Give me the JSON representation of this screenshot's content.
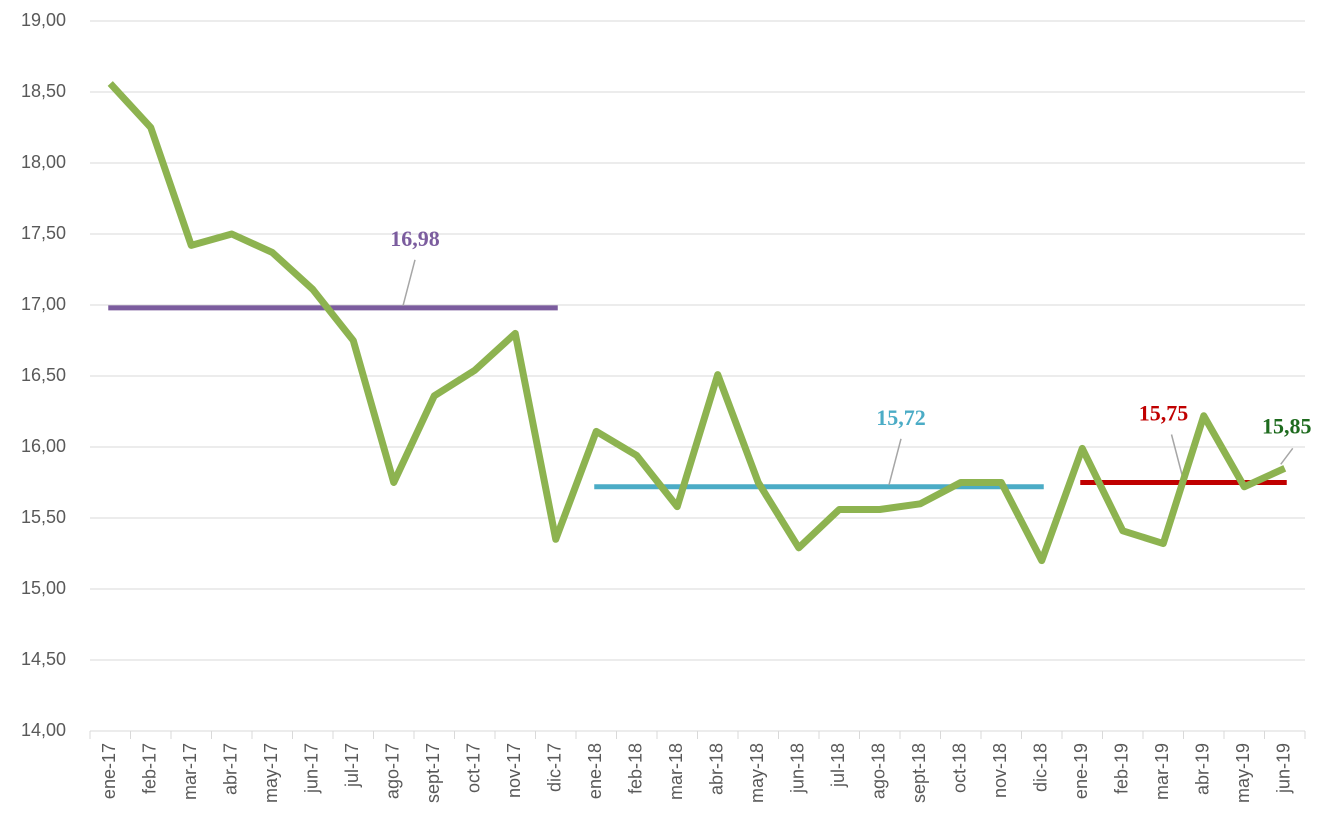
{
  "chart_data": {
    "type": "line",
    "categories": [
      "ene-17",
      "feb-17",
      "mar-17",
      "abr-17",
      "may-17",
      "jun-17",
      "jul-17",
      "ago-17",
      "sept-17",
      "oct-17",
      "nov-17",
      "dic-17",
      "ene-18",
      "feb-18",
      "mar-18",
      "abr-18",
      "may-18",
      "jun-18",
      "jul-18",
      "ago-18",
      "sept-18",
      "oct-18",
      "nov-18",
      "dic-18",
      "ene-19",
      "feb-19",
      "mar-19",
      "abr-19",
      "may-19",
      "jun-19"
    ],
    "series": [
      {
        "color": "#8db350",
        "values": [
          18.56,
          18.25,
          17.42,
          17.5,
          17.37,
          17.11,
          16.75,
          15.75,
          16.36,
          16.54,
          16.8,
          15.35,
          16.11,
          15.94,
          15.58,
          16.51,
          15.75,
          15.29,
          15.56,
          15.56,
          15.6,
          15.75,
          15.75,
          15.2,
          15.99,
          15.41,
          15.32,
          16.22,
          15.72,
          15.85
        ],
        "end_label": {
          "text": "15,85",
          "color": "#1e6b1e"
        }
      }
    ],
    "reference_lines": [
      {
        "value": 16.98,
        "label": "16,98",
        "color": "#7b5c9e",
        "from": "ene-17",
        "to": "dic-17"
      },
      {
        "value": 15.72,
        "label": "15,72",
        "color": "#4bacc6",
        "from": "ene-18",
        "to": "dic-18"
      },
      {
        "value": 15.75,
        "label": "15,75",
        "color": "#c00000",
        "from": "ene-19",
        "to": "jun-19"
      }
    ],
    "ylim": [
      14,
      19
    ],
    "yticks": [
      {
        "value": 14,
        "label": "14,00"
      },
      {
        "value": 14.5,
        "label": "14,50"
      },
      {
        "value": 15,
        "label": "15,00"
      },
      {
        "value": 15.5,
        "label": "15,50"
      },
      {
        "value": 16,
        "label": "16,00"
      },
      {
        "value": 16.5,
        "label": "16,50"
      },
      {
        "value": 17,
        "label": "17,00"
      },
      {
        "value": 17.5,
        "label": "17,50"
      },
      {
        "value": 18,
        "label": "18,00"
      },
      {
        "value": 18.5,
        "label": "18,50"
      },
      {
        "value": 19,
        "label": "19,00"
      }
    ],
    "grid": true
  }
}
